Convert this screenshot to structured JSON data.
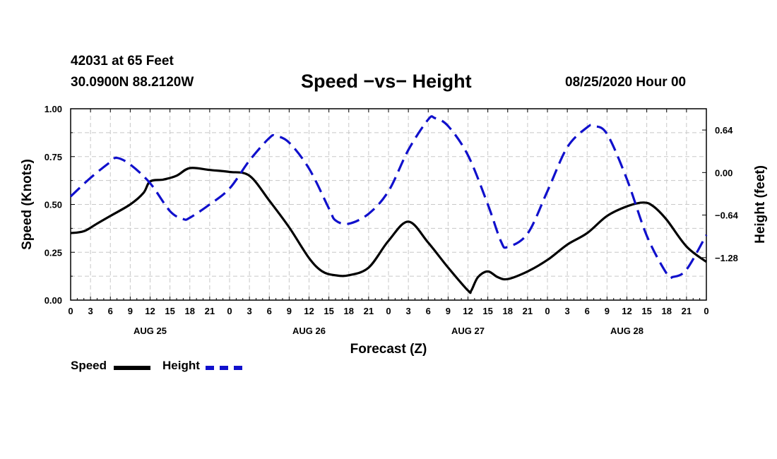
{
  "header": {
    "station": "42031 at 65 Feet",
    "coords": "30.0900N 88.2120W",
    "title": "Speed −vs− Height",
    "timestamp": "08/25/2020 Hour 00"
  },
  "chart_data": {
    "type": "line",
    "title": "Speed −vs− Height",
    "xlabel": "Forecast (Z)",
    "ylabel_left": "Speed (Knots)",
    "ylabel_right": "Height (feet)",
    "xlim": [
      0,
      96
    ],
    "ylim_left": [
      0,
      1.0
    ],
    "ylim_right": [
      -1.92,
      0.96
    ],
    "left_ticks": [
      "0.00",
      "0.25",
      "0.50",
      "0.75",
      "1.00"
    ],
    "right_ticks": [
      {
        "value": 0.64,
        "label": "0.64"
      },
      {
        "value": 0.0,
        "label": "0.00"
      },
      {
        "value": -0.64,
        "label": "−0.64"
      },
      {
        "value": -1.28,
        "label": "−1.28"
      }
    ],
    "x_tick_labels": [
      "0",
      "3",
      "6",
      "9",
      "12",
      "15",
      "18",
      "21",
      "0",
      "3",
      "6",
      "9",
      "12",
      "15",
      "18",
      "21",
      "0",
      "3",
      "6",
      "9",
      "12",
      "15",
      "18",
      "21",
      "0",
      "3",
      "6",
      "9",
      "12",
      "15",
      "18",
      "21",
      "0"
    ],
    "day_labels": [
      {
        "hour": 12,
        "label": "AUG 25"
      },
      {
        "hour": 36,
        "label": "AUG 26"
      },
      {
        "hour": 60,
        "label": "AUG 27"
      },
      {
        "hour": 84,
        "label": "AUG 28"
      }
    ],
    "grid": true,
    "series": [
      {
        "name": "Speed",
        "axis": "left",
        "color": "#000000",
        "style": "solid",
        "x": [
          0,
          2,
          4,
          6,
          9,
          11,
          12,
          14,
          16,
          18,
          21,
          24,
          27,
          30,
          33,
          36,
          38,
          40,
          42,
          45,
          48,
          51,
          54,
          57,
          60,
          60.5,
          61.5,
          63,
          64.5,
          66,
          69,
          72,
          75,
          78,
          81,
          84,
          86.5,
          88,
          90,
          93,
          96
        ],
        "values": [
          0.35,
          0.36,
          0.4,
          0.44,
          0.5,
          0.56,
          0.62,
          0.63,
          0.65,
          0.69,
          0.68,
          0.67,
          0.65,
          0.52,
          0.38,
          0.22,
          0.15,
          0.13,
          0.13,
          0.17,
          0.31,
          0.41,
          0.3,
          0.17,
          0.05,
          0.05,
          0.12,
          0.15,
          0.12,
          0.11,
          0.15,
          0.21,
          0.29,
          0.35,
          0.44,
          0.49,
          0.51,
          0.49,
          0.42,
          0.28,
          0.2
        ]
      },
      {
        "name": "Height",
        "axis": "right",
        "color": "#1010cc",
        "style": "dashed",
        "x": [
          0,
          3,
          6,
          7,
          9,
          12,
          15,
          17,
          18,
          21,
          24,
          27,
          30,
          31,
          33,
          36,
          39,
          40,
          42,
          45,
          48,
          51,
          54,
          55,
          57,
          60,
          63,
          65,
          66,
          69,
          72,
          75,
          78,
          79,
          81,
          84,
          87,
          90,
          91,
          93,
          96
        ],
        "values": [
          -0.36,
          -0.08,
          0.16,
          0.22,
          0.12,
          -0.16,
          -0.58,
          -0.7,
          -0.68,
          -0.48,
          -0.24,
          0.18,
          0.52,
          0.55,
          0.45,
          0.06,
          -0.54,
          -0.72,
          -0.77,
          -0.62,
          -0.28,
          0.34,
          0.8,
          0.82,
          0.7,
          0.26,
          -0.48,
          -1.04,
          -1.12,
          -0.92,
          -0.28,
          0.38,
          0.68,
          0.7,
          0.58,
          -0.1,
          -0.95,
          -1.52,
          -1.57,
          -1.46,
          -0.94
        ]
      }
    ]
  },
  "legend": {
    "speed_label": "Speed",
    "height_label": "Height"
  }
}
